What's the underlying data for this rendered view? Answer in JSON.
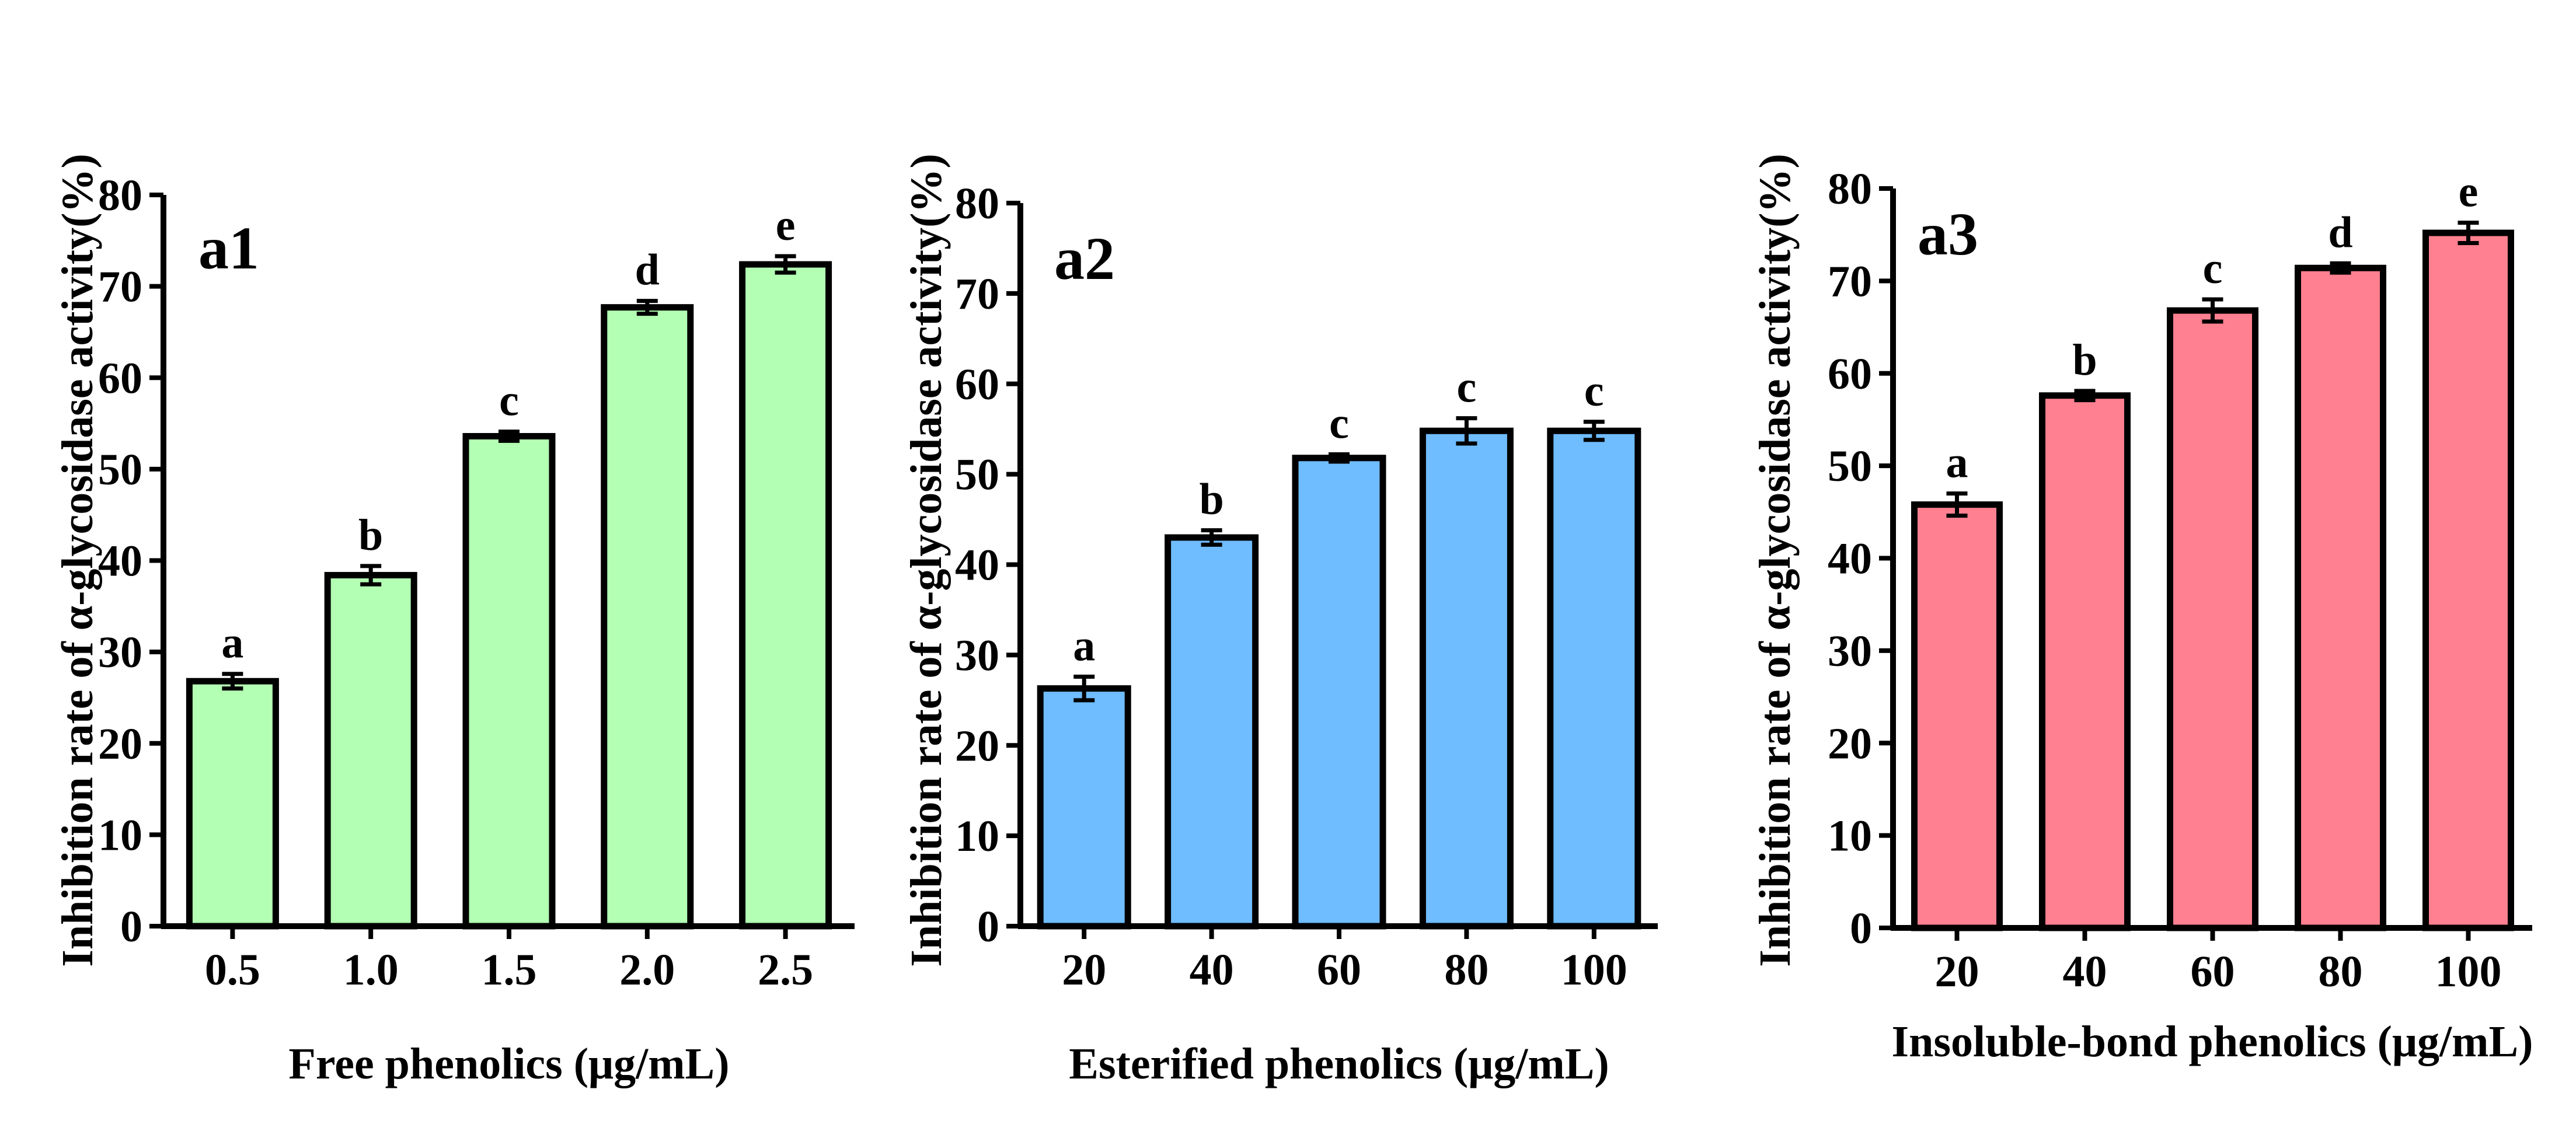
{
  "chart_data": [
    {
      "type": "bar",
      "panel_label": "a1",
      "xlabel": "Free phenolics (μg/mL)",
      "ylabel": "Inhibition rate of α-glycosidase activity(%)",
      "categories": [
        "0.5",
        "1.0",
        "1.5",
        "2.0",
        "2.5"
      ],
      "values": [
        26.8,
        38.4,
        53.6,
        67.7,
        72.4
      ],
      "errors": [
        0.8,
        1.0,
        0.5,
        0.7,
        0.9
      ],
      "significance": [
        "a",
        "b",
        "c",
        "d",
        "e"
      ],
      "yticks": [
        "0",
        "10",
        "20",
        "30",
        "40",
        "50",
        "60",
        "70",
        "80"
      ],
      "ylim": [
        0,
        80
      ],
      "color": "#b3ffb3"
    },
    {
      "type": "bar",
      "panel_label": "a2",
      "xlabel": "Esterified phenolics (μg/mL)",
      "ylabel": "Inhibition rate of α-glycosidase activity(%)",
      "categories": [
        "20",
        "40",
        "60",
        "80",
        "100"
      ],
      "values": [
        26.3,
        43.0,
        51.8,
        54.8,
        54.8
      ],
      "errors": [
        1.3,
        0.8,
        0.4,
        1.4,
        1.0
      ],
      "significance": [
        "a",
        "b",
        "c",
        "c",
        "c"
      ],
      "yticks": [
        "0",
        "10",
        "20",
        "30",
        "40",
        "50",
        "60",
        "70",
        "80"
      ],
      "ylim": [
        0,
        80
      ],
      "color": "#6fbcff"
    },
    {
      "type": "bar",
      "panel_label": "a3",
      "xlabel": "Insoluble-bond phenolics (μg/mL)",
      "ylabel": "Inhibition rate of α-glycosidase activity(%)",
      "categories": [
        "20",
        "40",
        "60",
        "80",
        "100"
      ],
      "values": [
        45.8,
        57.6,
        66.8,
        71.4,
        75.2
      ],
      "errors": [
        1.2,
        0.5,
        1.2,
        0.5,
        1.1
      ],
      "significance": [
        "a",
        "b",
        "c",
        "d",
        "e"
      ],
      "yticks": [
        "0",
        "10",
        "20",
        "30",
        "40",
        "50",
        "60",
        "70",
        "80"
      ],
      "ylim": [
        0,
        80
      ],
      "color": "#ff8090"
    }
  ]
}
